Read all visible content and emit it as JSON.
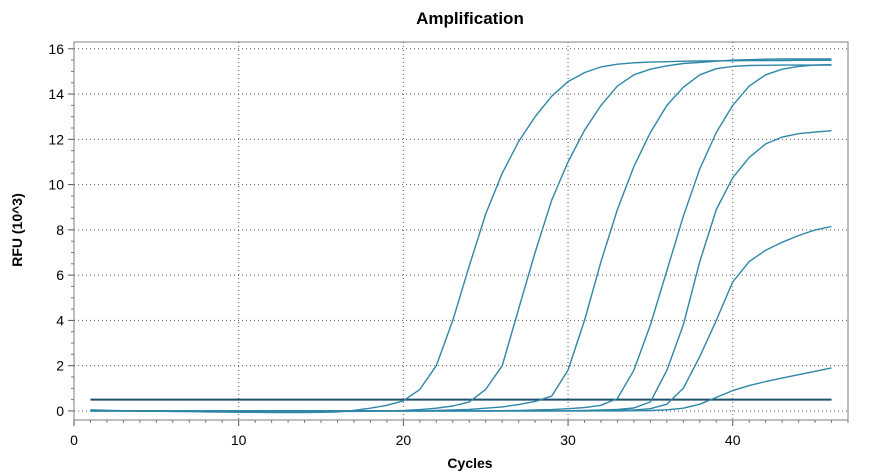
{
  "chart_data": {
    "type": "line",
    "title": "Amplification",
    "xlabel": "Cycles",
    "ylabel": "RFU (10^3)",
    "xlim": [
      0,
      47
    ],
    "ylim": [
      -0.4,
      16.3
    ],
    "x_ticks": [
      0,
      10,
      20,
      30,
      40
    ],
    "y_ticks": [
      0,
      2,
      4,
      6,
      8,
      10,
      12,
      14,
      16
    ],
    "grid": "dotted",
    "legend": "none",
    "curve_color": "#2e86a8",
    "threshold": {
      "value": 0.5,
      "color": "#1f4f6b"
    },
    "x": [
      1,
      2,
      3,
      4,
      5,
      6,
      7,
      8,
      9,
      10,
      11,
      12,
      13,
      14,
      15,
      16,
      17,
      18,
      19,
      20,
      21,
      22,
      23,
      24,
      25,
      26,
      27,
      28,
      29,
      30,
      31,
      32,
      33,
      34,
      35,
      36,
      37,
      38,
      39,
      40,
      41,
      42,
      43,
      44,
      45,
      46
    ],
    "series": [
      {
        "values": [
          0.05,
          0.03,
          0.01,
          0.0,
          -0.01,
          -0.02,
          -0.03,
          -0.04,
          -0.05,
          -0.06,
          -0.06,
          -0.07,
          -0.07,
          -0.07,
          -0.06,
          -0.04,
          0.03,
          0.12,
          0.25,
          0.45,
          0.95,
          2.0,
          4.0,
          6.4,
          8.7,
          10.5,
          11.9,
          13.0,
          13.9,
          14.55,
          14.95,
          15.2,
          15.32,
          15.38,
          15.41,
          15.43,
          15.45,
          15.46,
          15.47,
          15.47,
          15.48,
          15.48,
          15.48,
          15.49,
          15.49,
          15.49
        ]
      },
      {
        "values": [
          0.02,
          0.01,
          0.0,
          -0.01,
          -0.01,
          -0.02,
          -0.02,
          -0.02,
          -0.02,
          -0.02,
          -0.02,
          -0.02,
          -0.02,
          -0.02,
          -0.02,
          -0.02,
          -0.02,
          -0.01,
          0.0,
          0.02,
          0.06,
          0.12,
          0.22,
          0.4,
          0.95,
          2.0,
          4.5,
          7.0,
          9.3,
          11.0,
          12.4,
          13.5,
          14.35,
          14.85,
          15.1,
          15.25,
          15.35,
          15.4,
          15.45,
          15.5,
          15.52,
          15.54,
          15.55,
          15.55,
          15.55,
          15.55
        ]
      },
      {
        "values": [
          0.0,
          0.0,
          0.0,
          0.0,
          0.0,
          0.0,
          0.0,
          0.0,
          0.0,
          0.0,
          0.0,
          0.0,
          0.0,
          0.0,
          0.0,
          0.0,
          0.0,
          0.0,
          0.0,
          0.0,
          0.0,
          0.02,
          0.04,
          0.07,
          0.12,
          0.18,
          0.28,
          0.42,
          0.65,
          1.8,
          4.0,
          6.6,
          8.9,
          10.8,
          12.3,
          13.5,
          14.3,
          14.85,
          15.12,
          15.22,
          15.26,
          15.27,
          15.28,
          15.28,
          15.28,
          15.28
        ]
      },
      {
        "values": [
          0.0,
          0.0,
          0.0,
          0.0,
          0.0,
          0.0,
          0.0,
          0.0,
          0.0,
          0.0,
          0.0,
          0.0,
          0.0,
          0.0,
          0.0,
          0.0,
          0.0,
          0.0,
          0.0,
          0.0,
          0.0,
          0.0,
          0.0,
          0.0,
          0.0,
          0.01,
          0.02,
          0.04,
          0.06,
          0.1,
          0.15,
          0.25,
          0.55,
          1.8,
          3.8,
          6.2,
          8.6,
          10.7,
          12.3,
          13.5,
          14.35,
          14.85,
          15.1,
          15.22,
          15.28,
          15.3
        ]
      },
      {
        "values": [
          0.0,
          0.0,
          0.0,
          0.0,
          0.0,
          0.0,
          0.0,
          0.0,
          0.0,
          0.0,
          0.0,
          0.0,
          0.0,
          0.0,
          0.0,
          0.0,
          0.0,
          0.0,
          0.0,
          0.0,
          0.0,
          0.0,
          0.0,
          0.0,
          0.0,
          0.0,
          0.0,
          0.0,
          0.0,
          0.01,
          0.02,
          0.04,
          0.07,
          0.13,
          0.4,
          1.8,
          3.8,
          6.6,
          8.9,
          10.3,
          11.2,
          11.8,
          12.1,
          12.25,
          12.32,
          12.38
        ]
      },
      {
        "values": [
          0.0,
          0.0,
          0.0,
          0.0,
          0.0,
          0.0,
          0.0,
          0.0,
          0.0,
          0.0,
          0.0,
          0.0,
          0.0,
          0.0,
          0.0,
          0.0,
          0.0,
          0.0,
          0.0,
          0.0,
          0.0,
          0.0,
          0.0,
          0.0,
          0.0,
          0.0,
          0.0,
          0.0,
          0.0,
          0.0,
          0.0,
          0.01,
          0.02,
          0.04,
          0.1,
          0.3,
          1.0,
          2.4,
          4.0,
          5.7,
          6.6,
          7.1,
          7.45,
          7.75,
          8.0,
          8.15
        ]
      },
      {
        "values": [
          0.0,
          0.0,
          0.0,
          0.0,
          0.0,
          0.0,
          0.0,
          0.0,
          0.0,
          0.0,
          0.0,
          0.0,
          0.0,
          0.0,
          0.0,
          0.0,
          0.0,
          0.0,
          0.0,
          0.0,
          0.0,
          0.0,
          0.0,
          0.0,
          0.0,
          0.0,
          0.0,
          0.0,
          0.0,
          0.0,
          0.0,
          0.0,
          0.0,
          0.01,
          0.02,
          0.05,
          0.12,
          0.3,
          0.6,
          0.9,
          1.12,
          1.3,
          1.45,
          1.6,
          1.75,
          1.9
        ]
      }
    ]
  }
}
